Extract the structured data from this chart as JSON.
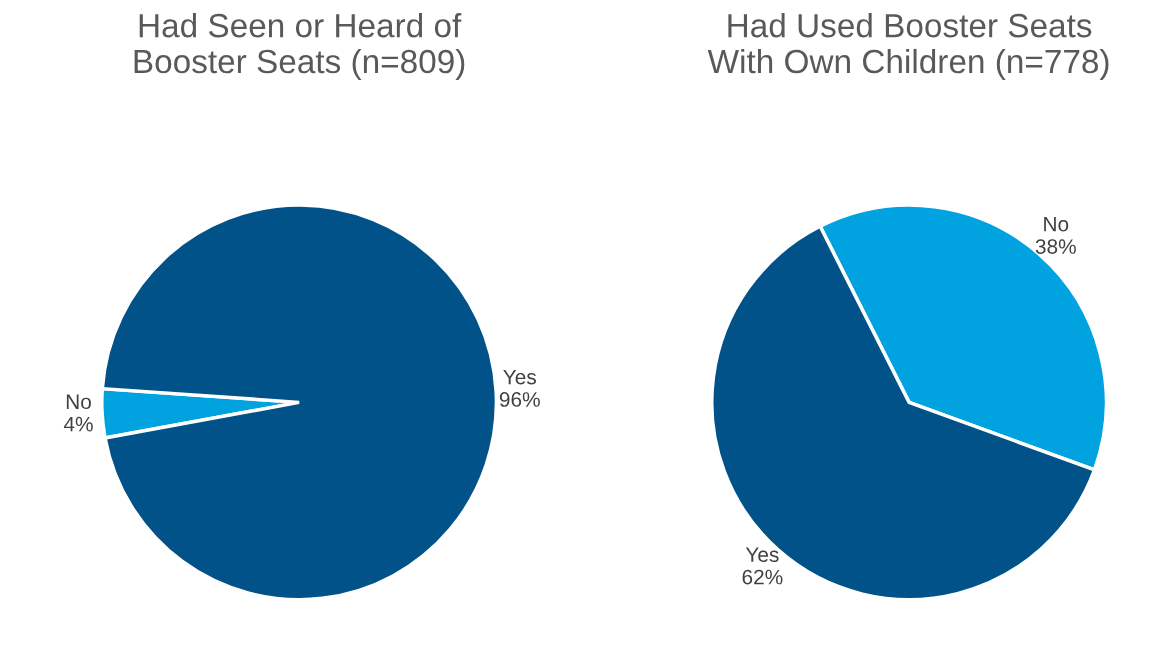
{
  "chart_data": [
    {
      "type": "pie",
      "title": "Had Seen or Heard of\nBooster Seats (n=809)",
      "categories": [
        "No",
        "Yes"
      ],
      "values": [
        4,
        96
      ],
      "value_labels": [
        "4%",
        "96%"
      ],
      "colors": [
        "#00a3e0",
        "#005288"
      ],
      "legend": false
    },
    {
      "type": "pie",
      "title": "Had Used Booster Seats\nWith Own Children (n=778)",
      "categories": [
        "No",
        "Yes"
      ],
      "values": [
        38,
        62
      ],
      "value_labels": [
        "38%",
        "62%"
      ],
      "colors": [
        "#00a3e0",
        "#005288"
      ],
      "legend": false
    }
  ]
}
